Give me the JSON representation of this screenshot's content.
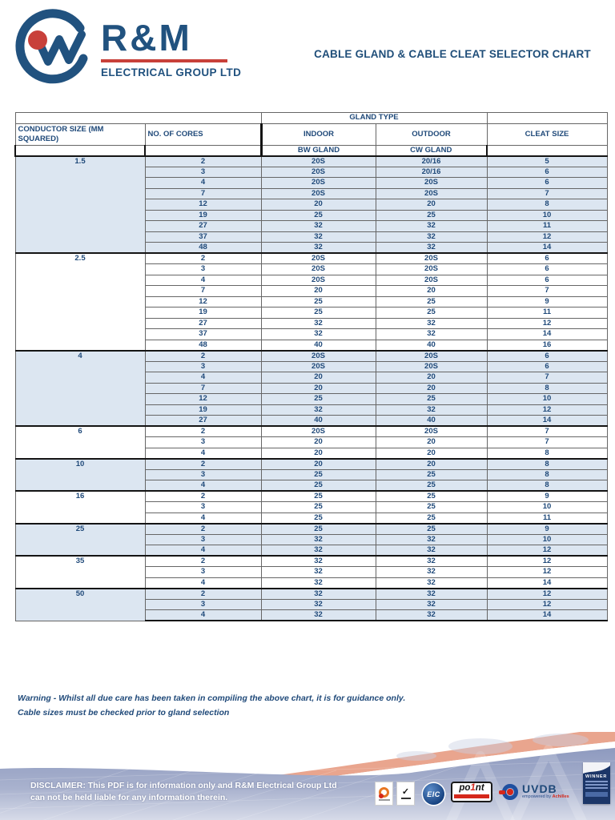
{
  "logo": {
    "brand": "R&M",
    "subtitle": "ELECTRICAL GROUP LTD"
  },
  "title": "CABLE GLAND & CABLE CLEAT SELECTOR CHART",
  "table": {
    "headers": {
      "gland_type": "GLAND TYPE",
      "conductor_size": "CONDUCTOR SIZE (MM SQUARED)",
      "cores": "NO. OF CORES",
      "indoor": "INDOOR",
      "outdoor": "OUTDOOR",
      "cleat_size": "CLEAT SIZE",
      "bw_gland": "BW GLAND",
      "cw_gland": "CW GLAND"
    },
    "sections": [
      {
        "size": "1.5",
        "shaded": true,
        "rows": [
          [
            "2",
            "20S",
            "20/16",
            "5"
          ],
          [
            "3",
            "20S",
            "20/16",
            "6"
          ],
          [
            "4",
            "20S",
            "20S",
            "6"
          ],
          [
            "7",
            "20S",
            "20S",
            "7"
          ],
          [
            "12",
            "20",
            "20",
            "8"
          ],
          [
            "19",
            "25",
            "25",
            "10"
          ],
          [
            "27",
            "32",
            "32",
            "11"
          ],
          [
            "37",
            "32",
            "32",
            "12"
          ],
          [
            "48",
            "32",
            "32",
            "14"
          ]
        ]
      },
      {
        "size": "2.5",
        "shaded": false,
        "rows": [
          [
            "2",
            "20S",
            "20S",
            "6"
          ],
          [
            "3",
            "20S",
            "20S",
            "6"
          ],
          [
            "4",
            "20S",
            "20S",
            "6"
          ],
          [
            "7",
            "20",
            "20",
            "7"
          ],
          [
            "12",
            "25",
            "25",
            "9"
          ],
          [
            "19",
            "25",
            "25",
            "11"
          ],
          [
            "27",
            "32",
            "32",
            "12"
          ],
          [
            "37",
            "32",
            "32",
            "14"
          ],
          [
            "48",
            "40",
            "40",
            "16"
          ]
        ]
      },
      {
        "size": "4",
        "shaded": true,
        "rows": [
          [
            "2",
            "20S",
            "20S",
            "6"
          ],
          [
            "3",
            "20S",
            "20S",
            "6"
          ],
          [
            "4",
            "20",
            "20",
            "7"
          ],
          [
            "7",
            "20",
            "20",
            "8"
          ],
          [
            "12",
            "25",
            "25",
            "10"
          ],
          [
            "19",
            "32",
            "32",
            "12"
          ],
          [
            "27",
            "40",
            "40",
            "14"
          ]
        ]
      },
      {
        "size": "6",
        "shaded": false,
        "rows": [
          [
            "2",
            "20S",
            "20S",
            "7"
          ],
          [
            "3",
            "20",
            "20",
            "7"
          ],
          [
            "4",
            "20",
            "20",
            "8"
          ]
        ]
      },
      {
        "size": "10",
        "shaded": true,
        "rows": [
          [
            "2",
            "20",
            "20",
            "8"
          ],
          [
            "3",
            "25",
            "25",
            "8"
          ],
          [
            "4",
            "25",
            "25",
            "8"
          ]
        ]
      },
      {
        "size": "16",
        "shaded": false,
        "rows": [
          [
            "2",
            "25",
            "25",
            "9"
          ],
          [
            "3",
            "25",
            "25",
            "10"
          ],
          [
            "4",
            "25",
            "25",
            "11"
          ]
        ]
      },
      {
        "size": "25",
        "shaded": true,
        "rows": [
          [
            "2",
            "25",
            "25",
            "9"
          ],
          [
            "3",
            "32",
            "32",
            "10"
          ],
          [
            "4",
            "32",
            "32",
            "12"
          ]
        ]
      },
      {
        "size": "35",
        "shaded": false,
        "rows": [
          [
            "2",
            "32",
            "32",
            "12"
          ],
          [
            "3",
            "32",
            "32",
            "12"
          ],
          [
            "4",
            "32",
            "32",
            "14"
          ]
        ]
      },
      {
        "size": "50",
        "shaded": true,
        "rows": [
          [
            "2",
            "32",
            "32",
            "12"
          ],
          [
            "3",
            "32",
            "32",
            "12"
          ],
          [
            "4",
            "32",
            "32",
            "14"
          ]
        ]
      }
    ]
  },
  "warning": {
    "line1": "Warning - Whilst all due care has been taken in compiling the above chart, it is for guidance only.",
    "line2": "Cable sizes must be checked prior to gland selection"
  },
  "footer": {
    "disclaimer_line1": "DISCLAIMER: This PDF is for information only and R&M Electrical Group Ltd",
    "disclaimer_line2": "can not be held liable for any information therein.",
    "eic_label": "EIC",
    "point_label_pre": "po",
    "point_label_one": "1",
    "point_label_post": "nt",
    "uvdb_label": "UVDB",
    "uvdb_sub_pre": "empowered by ",
    "uvdb_sub_brand": "Achilles",
    "winner_label": "WINNER",
    "ukas_glyph": "✓"
  },
  "colors": {
    "accent_blue": "#1F4E79",
    "logo_blue": "#21527F",
    "brand_red": "#C8403A",
    "row_shaded": "#DCE6F1",
    "border_dark": "#141414",
    "band_blue": "#9AA5C6",
    "salmon": "#E9A58E"
  }
}
